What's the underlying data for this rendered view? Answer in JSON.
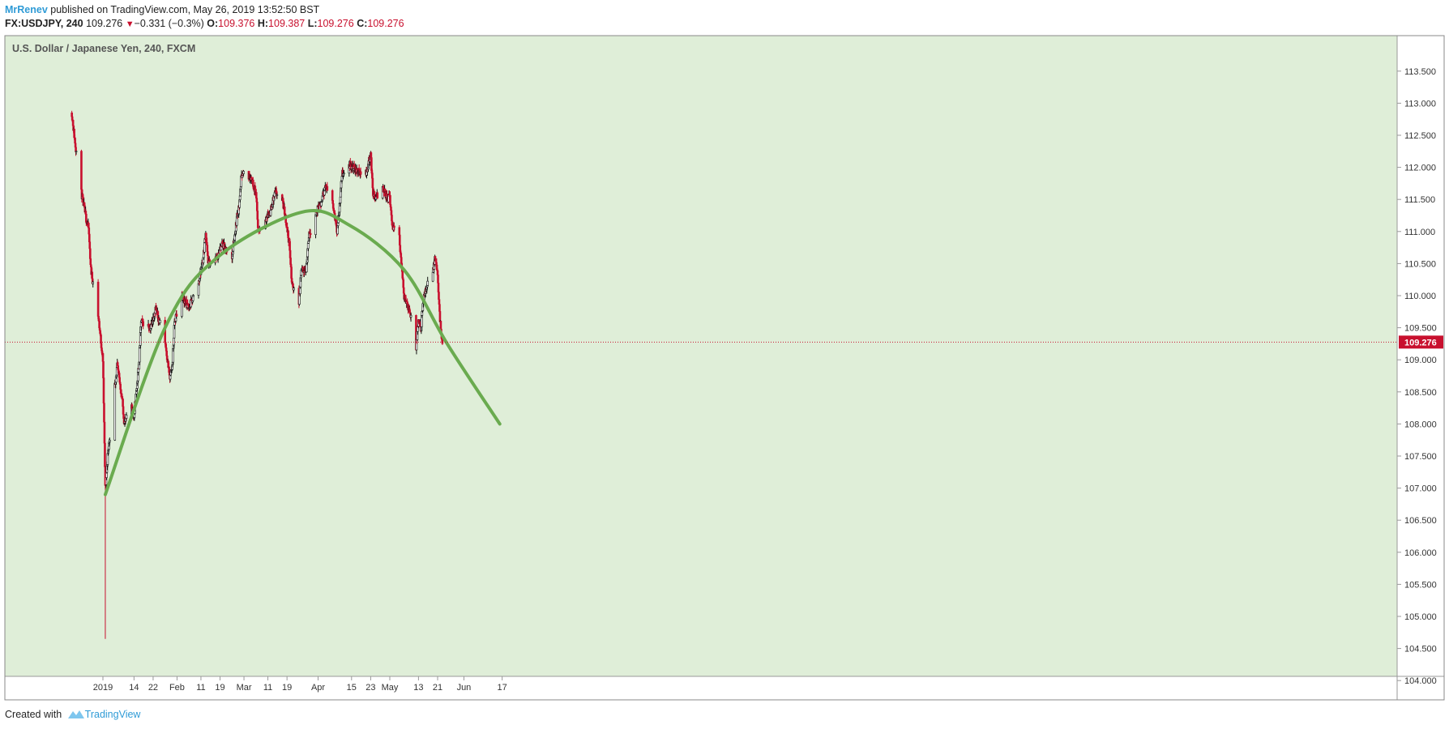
{
  "header": {
    "author": "MrRenev",
    "published_text": " published on TradingView.com, May 26, 2019 13:52:50 BST",
    "symbol": "FX:USDJPY, 240",
    "last": "109.276",
    "change": "−0.331 (−0.3%)",
    "o_label": "O:",
    "o_value": "109.376",
    "h_label": "H:",
    "h_value": "109.387",
    "l_label": "L:",
    "l_value": "109.276",
    "c_label": "C:",
    "c_value": "109.276"
  },
  "footer": {
    "created_with": "Created with",
    "brand": "TradingView"
  },
  "colors": {
    "background": "#dfeed8",
    "up_candle": "#111111",
    "down_candle": "#c8102e",
    "curve": "#6aab4f",
    "price_line": "#c8102e",
    "price_tag_bg": "#c8102e"
  },
  "chart_data": {
    "type": "candlestick",
    "title": "U.S. Dollar / Japanese Yen, 240, FXCM",
    "x_ticks": [
      "2019",
      "14",
      "22",
      "Feb",
      "11",
      "19",
      "Mar",
      "11",
      "19",
      "Apr",
      "15",
      "23",
      "May",
      "13",
      "21",
      "Jun",
      "17"
    ],
    "y_ticks": [
      "113.500",
      "113.000",
      "112.500",
      "112.000",
      "111.500",
      "111.000",
      "110.500",
      "110.000",
      "109.500",
      "109.000",
      "108.500",
      "108.000",
      "107.500",
      "107.000",
      "106.500",
      "106.000",
      "105.500",
      "105.000",
      "104.500",
      "104.000"
    ],
    "ylim": [
      103.75,
      114.2
    ],
    "last_price_label": "109.276",
    "price_path": [
      {
        "date": "2018-12-20",
        "price": 112.85
      },
      {
        "date": "2018-12-21",
        "price": 112.5
      },
      {
        "date": "2018-12-24",
        "price": 111.6
      },
      {
        "date": "2018-12-26",
        "price": 111.2
      },
      {
        "date": "2018-12-27",
        "price": 111.05
      },
      {
        "date": "2018-12-28",
        "price": 110.4
      },
      {
        "date": "2018-12-31",
        "price": 109.7
      },
      {
        "date": "2019-01-02",
        "price": 109.0
      },
      {
        "date": "2019-01-03",
        "price": 107.0
      },
      {
        "date": "2019-01-04",
        "price": 107.5
      },
      {
        "date": "2019-01-07",
        "price": 108.6
      },
      {
        "date": "2019-01-08",
        "price": 108.9
      },
      {
        "date": "2019-01-10",
        "price": 108.4
      },
      {
        "date": "2019-01-11",
        "price": 108.0
      },
      {
        "date": "2019-01-14",
        "price": 108.3
      },
      {
        "date": "2019-01-15",
        "price": 108.1
      },
      {
        "date": "2019-01-17",
        "price": 108.9
      },
      {
        "date": "2019-01-18",
        "price": 109.6
      },
      {
        "date": "2019-01-22",
        "price": 109.5
      },
      {
        "date": "2019-01-24",
        "price": 109.8
      },
      {
        "date": "2019-01-28",
        "price": 109.3
      },
      {
        "date": "2019-01-30",
        "price": 108.7
      },
      {
        "date": "2019-01-31",
        "price": 108.9
      },
      {
        "date": "2019-02-01",
        "price": 109.6
      },
      {
        "date": "2019-02-04",
        "price": 110.0
      },
      {
        "date": "2019-02-07",
        "price": 109.8
      },
      {
        "date": "2019-02-11",
        "price": 110.2
      },
      {
        "date": "2019-02-13",
        "price": 110.6
      },
      {
        "date": "2019-02-14",
        "price": 111.0
      },
      {
        "date": "2019-02-15",
        "price": 110.5
      },
      {
        "date": "2019-02-19",
        "price": 110.6
      },
      {
        "date": "2019-02-21",
        "price": 110.8
      },
      {
        "date": "2019-02-25",
        "price": 110.6
      },
      {
        "date": "2019-02-27",
        "price": 111.2
      },
      {
        "date": "2019-02-28",
        "price": 111.4
      },
      {
        "date": "2019-03-01",
        "price": 111.9
      },
      {
        "date": "2019-03-05",
        "price": 111.85
      },
      {
        "date": "2019-03-07",
        "price": 111.6
      },
      {
        "date": "2019-03-08",
        "price": 111.0
      },
      {
        "date": "2019-03-11",
        "price": 111.2
      },
      {
        "date": "2019-03-13",
        "price": 111.3
      },
      {
        "date": "2019-03-15",
        "price": 111.6
      },
      {
        "date": "2019-03-18",
        "price": 111.5
      },
      {
        "date": "2019-03-19",
        "price": 111.3
      },
      {
        "date": "2019-03-21",
        "price": 110.8
      },
      {
        "date": "2019-03-22",
        "price": 110.2
      },
      {
        "date": "2019-03-25",
        "price": 109.9
      },
      {
        "date": "2019-03-26",
        "price": 110.4
      },
      {
        "date": "2019-03-28",
        "price": 110.4
      },
      {
        "date": "2019-03-29",
        "price": 110.9
      },
      {
        "date": "2019-04-01",
        "price": 111.3
      },
      {
        "date": "2019-04-03",
        "price": 111.4
      },
      {
        "date": "2019-04-05",
        "price": 111.7
      },
      {
        "date": "2019-04-08",
        "price": 111.5
      },
      {
        "date": "2019-04-10",
        "price": 111.0
      },
      {
        "date": "2019-04-11",
        "price": 111.4
      },
      {
        "date": "2019-04-12",
        "price": 111.9
      },
      {
        "date": "2019-04-15",
        "price": 112.05
      },
      {
        "date": "2019-04-18",
        "price": 111.95
      },
      {
        "date": "2019-04-22",
        "price": 111.9
      },
      {
        "date": "2019-04-24",
        "price": 112.2
      },
      {
        "date": "2019-04-25",
        "price": 111.6
      },
      {
        "date": "2019-04-26",
        "price": 111.5
      },
      {
        "date": "2019-04-29",
        "price": 111.7
      },
      {
        "date": "2019-05-01",
        "price": 111.5
      },
      {
        "date": "2019-05-02",
        "price": 111.55
      },
      {
        "date": "2019-05-03",
        "price": 111.1
      },
      {
        "date": "2019-05-06",
        "price": 110.9
      },
      {
        "date": "2019-05-07",
        "price": 110.4
      },
      {
        "date": "2019-05-08",
        "price": 110.0
      },
      {
        "date": "2019-05-10",
        "price": 109.8
      },
      {
        "date": "2019-05-13",
        "price": 109.2
      },
      {
        "date": "2019-05-14",
        "price": 109.6
      },
      {
        "date": "2019-05-15",
        "price": 109.5
      },
      {
        "date": "2019-05-16",
        "price": 109.9
      },
      {
        "date": "2019-05-17",
        "price": 110.1
      },
      {
        "date": "2019-05-20",
        "price": 110.4
      },
      {
        "date": "2019-05-21",
        "price": 110.6
      },
      {
        "date": "2019-05-22",
        "price": 110.3
      },
      {
        "date": "2019-05-23",
        "price": 109.6
      },
      {
        "date": "2019-05-24",
        "price": 109.276
      }
    ],
    "flash_crash": {
      "date": "2019-01-03",
      "low": 104.65
    },
    "curve": {
      "color": "#6aab4f",
      "points": [
        {
          "date": "2019-01-03",
          "price": 106.9
        },
        {
          "date": "2019-01-28",
          "price": 109.5
        },
        {
          "date": "2019-02-19",
          "price": 110.6
        },
        {
          "date": "2019-03-26",
          "price": 111.3
        },
        {
          "date": "2019-04-15",
          "price": 111.1
        },
        {
          "date": "2019-05-08",
          "price": 110.4
        },
        {
          "date": "2019-05-26",
          "price": 109.25
        },
        {
          "date": "2019-06-17",
          "price": 108.0
        }
      ]
    }
  }
}
